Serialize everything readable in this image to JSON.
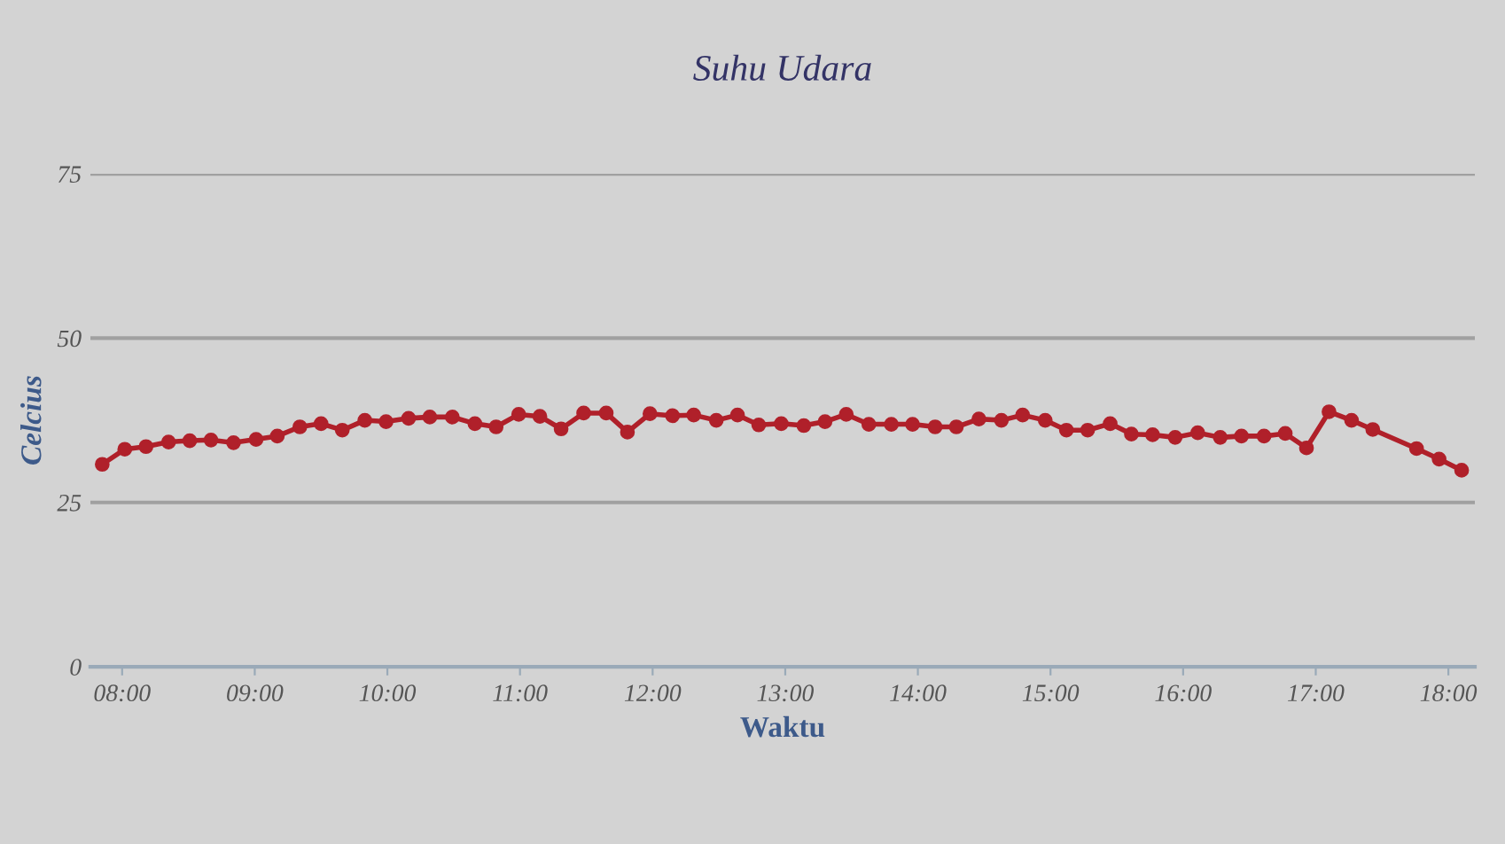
{
  "chart_data": {
    "type": "line",
    "title": "Suhu Udara",
    "xlabel": "Waktu",
    "ylabel": "Celcius",
    "x": [
      7.85,
      8.02,
      8.18,
      8.35,
      8.51,
      8.67,
      8.84,
      9.01,
      9.17,
      9.34,
      9.5,
      9.66,
      9.83,
      9.99,
      10.16,
      10.32,
      10.49,
      10.66,
      10.82,
      10.99,
      11.15,
      11.31,
      11.48,
      11.65,
      11.81,
      11.98,
      12.15,
      12.31,
      12.48,
      12.64,
      12.8,
      12.97,
      13.14,
      13.3,
      13.46,
      13.63,
      13.8,
      13.96,
      14.13,
      14.29,
      14.46,
      14.63,
      14.79,
      14.96,
      15.12,
      15.28,
      15.45,
      15.61,
      15.77,
      15.94,
      16.11,
      16.28,
      16.44,
      16.61,
      16.77,
      16.93,
      17.1,
      17.27,
      17.43,
      17.76,
      17.93,
      18.1
    ],
    "series": [
      {
        "color": "#b0202a",
        "values": [
          30.8,
          33.1,
          33.5,
          34.2,
          34.4,
          34.5,
          34.1,
          34.6,
          35.1,
          36.5,
          37.0,
          36.0,
          37.5,
          37.3,
          37.8,
          38.0,
          38.0,
          37.0,
          36.5,
          38.4,
          38.1,
          36.2,
          38.6,
          38.6,
          35.7,
          38.5,
          38.2,
          38.3,
          37.5,
          38.3,
          36.8,
          37.0,
          36.7,
          37.3,
          38.4,
          36.9,
          36.9,
          36.9,
          36.5,
          36.5,
          37.7,
          37.5,
          38.3,
          37.5,
          36.0,
          36.0,
          37.0,
          35.4,
          35.3,
          34.9,
          35.6,
          34.9,
          35.1,
          35.1,
          35.5,
          33.3,
          38.8,
          37.5,
          36.1,
          33.2,
          31.6,
          29.9
        ]
      }
    ],
    "xlim": [
      7.76,
      18.2
    ],
    "ylim": [
      0,
      75
    ],
    "xticks": [
      {
        "value": 8,
        "label": "08:00"
      },
      {
        "value": 9,
        "label": "09:00"
      },
      {
        "value": 10,
        "label": "10:00"
      },
      {
        "value": 11,
        "label": "11:00"
      },
      {
        "value": 12,
        "label": "12:00"
      },
      {
        "value": 13,
        "label": "13:00"
      },
      {
        "value": 14,
        "label": "14:00"
      },
      {
        "value": 15,
        "label": "15:00"
      },
      {
        "value": 16,
        "label": "16:00"
      },
      {
        "value": 17,
        "label": "17:00"
      },
      {
        "value": 18,
        "label": "18:00"
      }
    ],
    "yticks": [
      0,
      25,
      50,
      75
    ],
    "grid": "y",
    "marker": "circle",
    "line_style": "solid",
    "legend": false
  }
}
